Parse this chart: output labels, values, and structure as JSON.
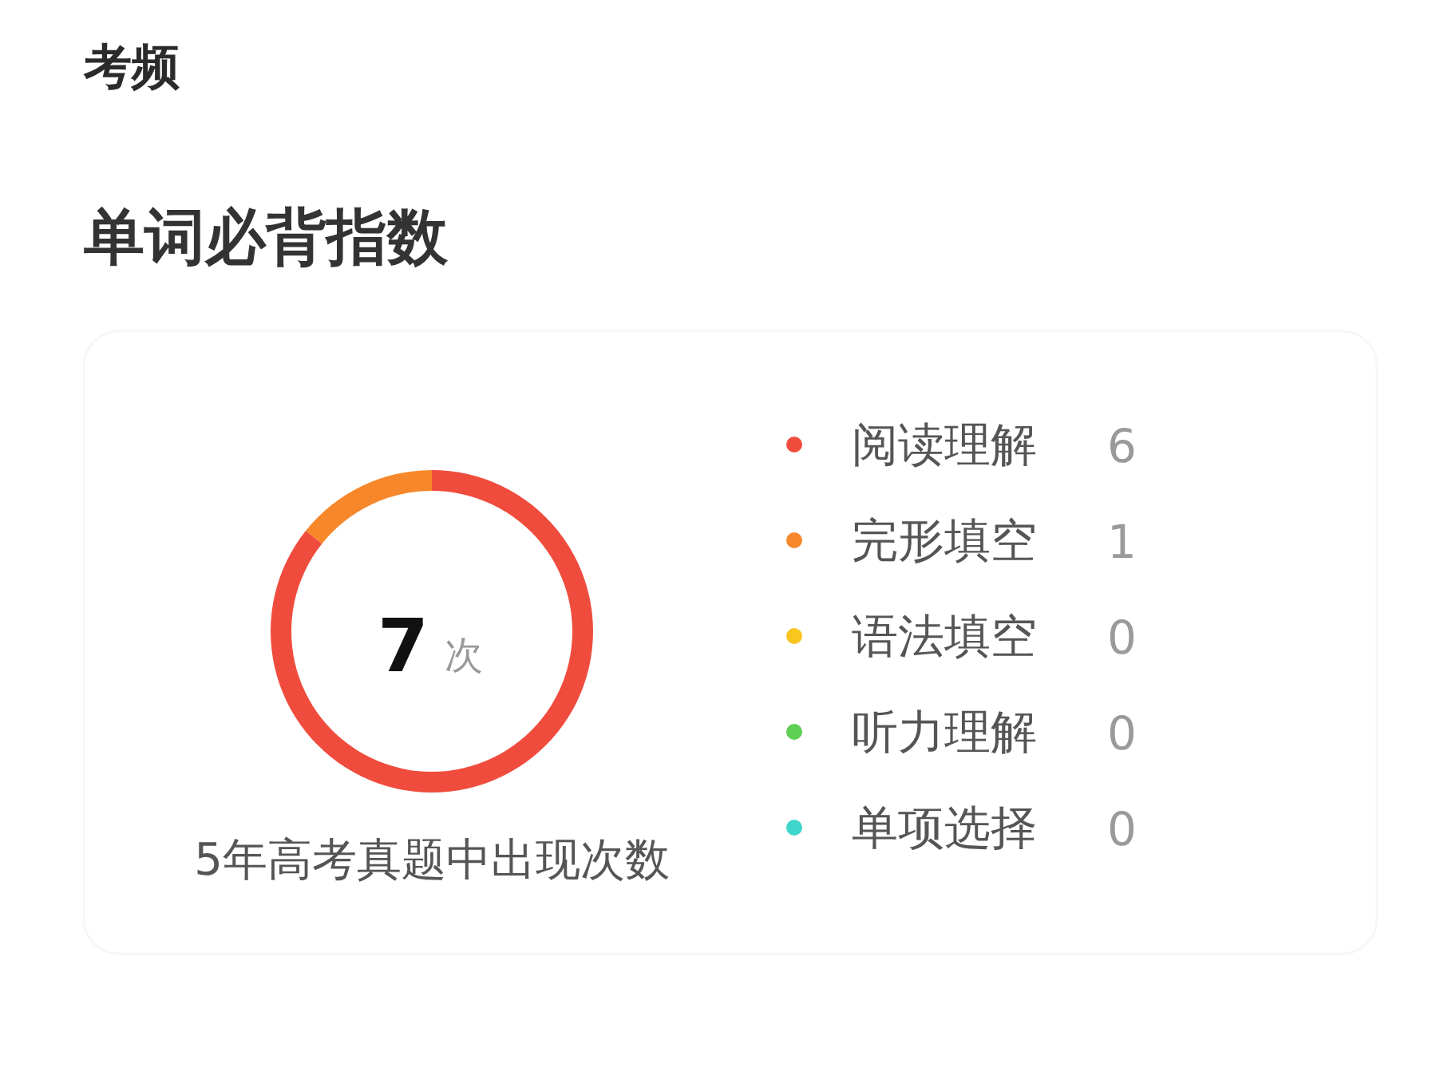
{
  "chart_data": {
    "type": "donut",
    "title": "考频",
    "subtitle": "单词必背指数",
    "categories": [
      "阅读理解",
      "完形填空",
      "语法填空",
      "听力理解",
      "单项选择"
    ],
    "values": [
      6,
      1,
      0,
      0,
      0
    ],
    "colors": [
      "#f04c3e",
      "#f6882b",
      "#f9c51f",
      "#5ecf52",
      "#3fd6cc"
    ],
    "value_labels": [
      "6",
      "1",
      "0",
      "0",
      "0"
    ],
    "legend": "right",
    "annotations": [
      "7",
      "次",
      "5年高考真题中出现次数"
    ]
  }
}
